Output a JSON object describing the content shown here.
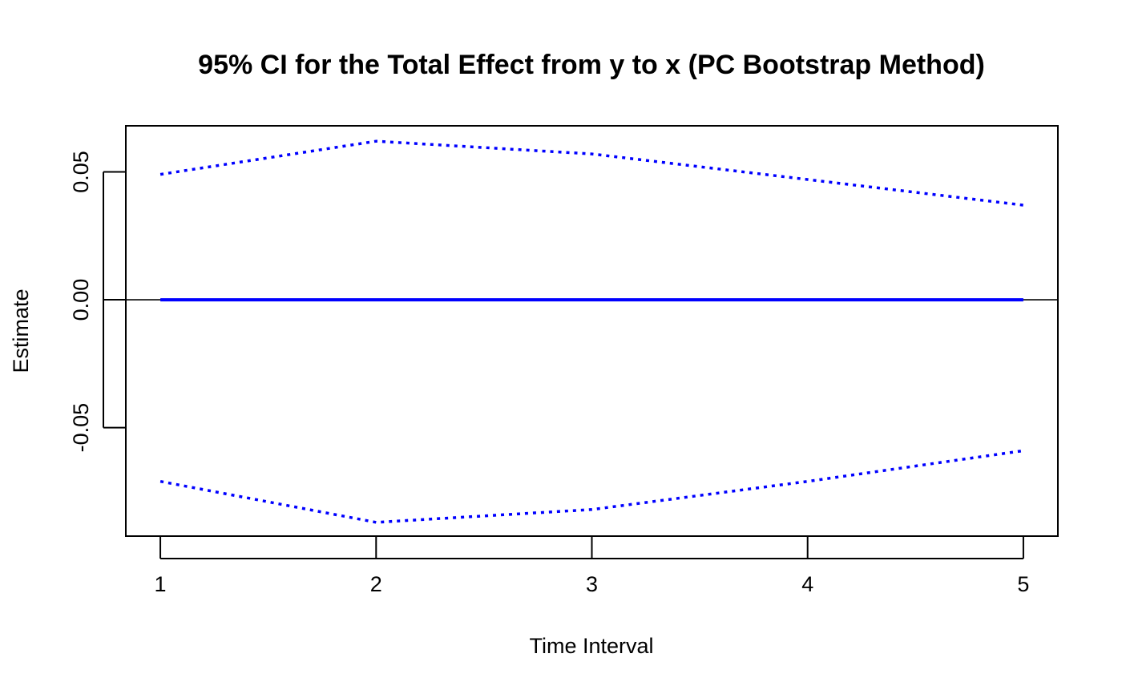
{
  "chart_data": {
    "type": "line",
    "title": "95% CI for the Total Effect from y to x (PC Bootstrap Method)",
    "xlabel": "Time Interval",
    "ylabel": "Estimate",
    "x": [
      1,
      2,
      3,
      4,
      5
    ],
    "xticks": [
      "1",
      "2",
      "3",
      "4",
      "5"
    ],
    "yticks": [
      {
        "value": -0.05,
        "label": "-0.05"
      },
      {
        "value": 0.0,
        "label": "0.00"
      },
      {
        "value": 0.05,
        "label": "0.05"
      }
    ],
    "xlim": [
      0.84,
      5.16
    ],
    "ylim": [
      -0.0924,
      0.068
    ],
    "reference_line": {
      "y": 0,
      "color": "#000000"
    },
    "series": [
      {
        "values": [
          0.0,
          0.0,
          0.0,
          0.0,
          0.0
        ],
        "color": "#0000ff",
        "style": "solid"
      },
      {
        "values": [
          0.049,
          0.062,
          0.057,
          0.047,
          0.037
        ],
        "color": "#0000ff",
        "style": "dotted"
      },
      {
        "values": [
          -0.071,
          -0.087,
          -0.082,
          -0.071,
          -0.059
        ],
        "color": "#0000ff",
        "style": "dotted"
      }
    ],
    "grid": false,
    "legend": "none"
  }
}
